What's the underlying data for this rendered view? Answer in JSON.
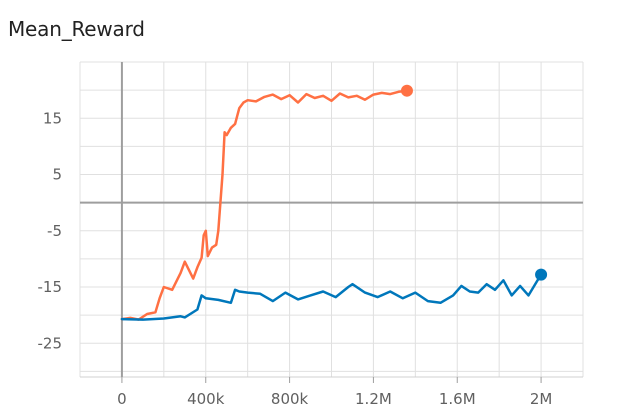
{
  "chart_data": {
    "type": "line",
    "title": "Mean_Reward",
    "xlabel": "",
    "ylabel": "",
    "xlim": [
      -200000,
      2200000
    ],
    "ylim": [
      -31,
      25
    ],
    "x_ticks": [
      0,
      400000,
      800000,
      1200000,
      1600000,
      2000000
    ],
    "x_tick_labels": [
      "0",
      "400k",
      "800k",
      "1.2M",
      "1.6M",
      "2M"
    ],
    "y_ticks": [
      15,
      5,
      -5,
      -15,
      -25
    ],
    "y_tick_labels": [
      "15",
      "5",
      "-5",
      "-15",
      "-25"
    ],
    "grid": true,
    "legend": "none",
    "series": [
      {
        "color": "#ff7043",
        "end_marker": true,
        "x": [
          0,
          40000,
          80000,
          120000,
          160000,
          180000,
          200000,
          240000,
          280000,
          300000,
          340000,
          360000,
          380000,
          390000,
          400000,
          410000,
          430000,
          450000,
          460000,
          480000,
          490000,
          500000,
          520000,
          540000,
          560000,
          580000,
          600000,
          640000,
          680000,
          720000,
          760000,
          800000,
          840000,
          880000,
          920000,
          960000,
          1000000,
          1040000,
          1080000,
          1120000,
          1160000,
          1200000,
          1240000,
          1280000,
          1320000,
          1360000
        ],
        "y": [
          -20.7,
          -20.5,
          -20.8,
          -19.8,
          -19.5,
          -17.0,
          -15.0,
          -15.5,
          -12.5,
          -10.5,
          -13.5,
          -11.5,
          -9.8,
          -5.8,
          -5.0,
          -9.5,
          -8.0,
          -7.5,
          -5.0,
          5.0,
          12.5,
          12.0,
          13.3,
          14.0,
          16.8,
          17.8,
          18.2,
          18.0,
          18.8,
          19.2,
          18.4,
          19.1,
          17.8,
          19.3,
          18.6,
          19.0,
          18.1,
          19.4,
          18.7,
          19.0,
          18.3,
          19.2,
          19.5,
          19.3,
          19.7,
          19.9
        ]
      },
      {
        "color": "#0077bb",
        "end_marker": true,
        "x": [
          0,
          100000,
          200000,
          280000,
          300000,
          360000,
          380000,
          400000,
          460000,
          520000,
          540000,
          560000,
          600000,
          660000,
          720000,
          780000,
          840000,
          900000,
          960000,
          1020000,
          1080000,
          1100000,
          1160000,
          1220000,
          1280000,
          1340000,
          1400000,
          1460000,
          1520000,
          1580000,
          1620000,
          1660000,
          1700000,
          1740000,
          1780000,
          1820000,
          1860000,
          1900000,
          1940000,
          1980000,
          2000000
        ],
        "y": [
          -20.7,
          -20.8,
          -20.6,
          -20.2,
          -20.4,
          -19.0,
          -16.5,
          -17.0,
          -17.3,
          -17.8,
          -15.5,
          -15.8,
          -16.0,
          -16.2,
          -17.5,
          -16.0,
          -17.2,
          -16.5,
          -15.8,
          -16.8,
          -15.0,
          -14.5,
          -16.0,
          -16.8,
          -15.8,
          -17.0,
          -16.0,
          -17.5,
          -17.8,
          -16.5,
          -14.8,
          -15.8,
          -16.0,
          -14.5,
          -15.5,
          -13.8,
          -16.5,
          -14.8,
          -16.5,
          -14.0,
          -12.8
        ]
      }
    ]
  }
}
